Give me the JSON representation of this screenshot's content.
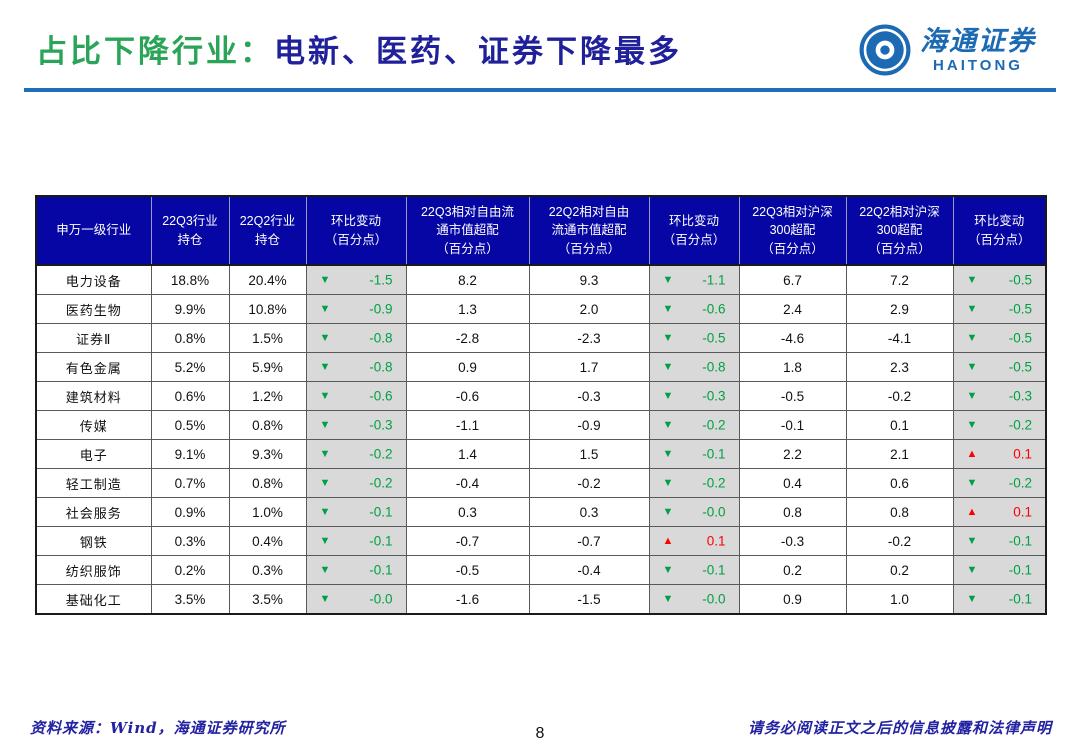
{
  "title": {
    "prefix": "占比下降行业：",
    "main": "电新、医药、证券下降最多"
  },
  "logo": {
    "company_cn": "海通证券",
    "company_en": "HAITONG"
  },
  "icons": {
    "down_triangle": "▼",
    "up_triangle": "▲",
    "logo_mark": "haitong-pinwheel"
  },
  "colors": {
    "title_green": "#2aa457",
    "title_navy": "#20209a",
    "header_bg": "#0606a4",
    "change_col_bg": "#d9d9d9",
    "down_green": "#00a142",
    "up_red": "#ff0000",
    "logo_blue": "#1b6ab3",
    "rule_blue": "#1e6fb8",
    "footer_navy": "#2222a2"
  },
  "table": {
    "headers": [
      "申万一级行业",
      "22Q3行业\n持仓",
      "22Q2行业\n持仓",
      "环比变动\n（百分点）",
      "22Q3相对自由流\n通市值超配\n（百分点）",
      "22Q2相对自由\n流通市值超配\n（百分点）",
      "环比变动\n（百分点）",
      "22Q3相对沪深\n300超配\n（百分点）",
      "22Q2相对沪深\n300超配\n（百分点）",
      "环比变动\n（百分点）"
    ],
    "rows": [
      {
        "industry": "电力设备",
        "q3_hold": "18.8%",
        "q2_hold": "20.4%",
        "chg_hold": {
          "dir": "down",
          "value": "-1.5"
        },
        "q3_ff": "8.2",
        "q2_ff": "9.3",
        "chg_ff": {
          "dir": "down",
          "value": "-1.1"
        },
        "q3_hs300": "6.7",
        "q2_hs300": "7.2",
        "chg_hs300": {
          "dir": "down",
          "value": "-0.5"
        }
      },
      {
        "industry": "医药生物",
        "q3_hold": "9.9%",
        "q2_hold": "10.8%",
        "chg_hold": {
          "dir": "down",
          "value": "-0.9"
        },
        "q3_ff": "1.3",
        "q2_ff": "2.0",
        "chg_ff": {
          "dir": "down",
          "value": "-0.6"
        },
        "q3_hs300": "2.4",
        "q2_hs300": "2.9",
        "chg_hs300": {
          "dir": "down",
          "value": "-0.5"
        }
      },
      {
        "industry": "证券Ⅱ",
        "q3_hold": "0.8%",
        "q2_hold": "1.5%",
        "chg_hold": {
          "dir": "down",
          "value": "-0.8"
        },
        "q3_ff": "-2.8",
        "q2_ff": "-2.3",
        "chg_ff": {
          "dir": "down",
          "value": "-0.5"
        },
        "q3_hs300": "-4.6",
        "q2_hs300": "-4.1",
        "chg_hs300": {
          "dir": "down",
          "value": "-0.5"
        }
      },
      {
        "industry": "有色金属",
        "q3_hold": "5.2%",
        "q2_hold": "5.9%",
        "chg_hold": {
          "dir": "down",
          "value": "-0.8"
        },
        "q3_ff": "0.9",
        "q2_ff": "1.7",
        "chg_ff": {
          "dir": "down",
          "value": "-0.8"
        },
        "q3_hs300": "1.8",
        "q2_hs300": "2.3",
        "chg_hs300": {
          "dir": "down",
          "value": "-0.5"
        }
      },
      {
        "industry": "建筑材料",
        "q3_hold": "0.6%",
        "q2_hold": "1.2%",
        "chg_hold": {
          "dir": "down",
          "value": "-0.6"
        },
        "q3_ff": "-0.6",
        "q2_ff": "-0.3",
        "chg_ff": {
          "dir": "down",
          "value": "-0.3"
        },
        "q3_hs300": "-0.5",
        "q2_hs300": "-0.2",
        "chg_hs300": {
          "dir": "down",
          "value": "-0.3"
        }
      },
      {
        "industry": "传媒",
        "q3_hold": "0.5%",
        "q2_hold": "0.8%",
        "chg_hold": {
          "dir": "down",
          "value": "-0.3"
        },
        "q3_ff": "-1.1",
        "q2_ff": "-0.9",
        "chg_ff": {
          "dir": "down",
          "value": "-0.2"
        },
        "q3_hs300": "-0.1",
        "q2_hs300": "0.1",
        "chg_hs300": {
          "dir": "down",
          "value": "-0.2"
        }
      },
      {
        "industry": "电子",
        "q3_hold": "9.1%",
        "q2_hold": "9.3%",
        "chg_hold": {
          "dir": "down",
          "value": "-0.2"
        },
        "q3_ff": "1.4",
        "q2_ff": "1.5",
        "chg_ff": {
          "dir": "down",
          "value": "-0.1"
        },
        "q3_hs300": "2.2",
        "q2_hs300": "2.1",
        "chg_hs300": {
          "dir": "up",
          "value": "0.1"
        }
      },
      {
        "industry": "轻工制造",
        "q3_hold": "0.7%",
        "q2_hold": "0.8%",
        "chg_hold": {
          "dir": "down",
          "value": "-0.2"
        },
        "q3_ff": "-0.4",
        "q2_ff": "-0.2",
        "chg_ff": {
          "dir": "down",
          "value": "-0.2"
        },
        "q3_hs300": "0.4",
        "q2_hs300": "0.6",
        "chg_hs300": {
          "dir": "down",
          "value": "-0.2"
        }
      },
      {
        "industry": "社会服务",
        "q3_hold": "0.9%",
        "q2_hold": "1.0%",
        "chg_hold": {
          "dir": "down",
          "value": "-0.1"
        },
        "q3_ff": "0.3",
        "q2_ff": "0.3",
        "chg_ff": {
          "dir": "down",
          "value": "-0.0"
        },
        "q3_hs300": "0.8",
        "q2_hs300": "0.8",
        "chg_hs300": {
          "dir": "up",
          "value": "0.1"
        }
      },
      {
        "industry": "钢铁",
        "q3_hold": "0.3%",
        "q2_hold": "0.4%",
        "chg_hold": {
          "dir": "down",
          "value": "-0.1"
        },
        "q3_ff": "-0.7",
        "q2_ff": "-0.7",
        "chg_ff": {
          "dir": "up",
          "value": "0.1"
        },
        "q3_hs300": "-0.3",
        "q2_hs300": "-0.2",
        "chg_hs300": {
          "dir": "down",
          "value": "-0.1"
        }
      },
      {
        "industry": "纺织服饰",
        "q3_hold": "0.2%",
        "q2_hold": "0.3%",
        "chg_hold": {
          "dir": "down",
          "value": "-0.1"
        },
        "q3_ff": "-0.5",
        "q2_ff": "-0.4",
        "chg_ff": {
          "dir": "down",
          "value": "-0.1"
        },
        "q3_hs300": "0.2",
        "q2_hs300": "0.2",
        "chg_hs300": {
          "dir": "down",
          "value": "-0.1"
        }
      },
      {
        "industry": "基础化工",
        "q3_hold": "3.5%",
        "q2_hold": "3.5%",
        "chg_hold": {
          "dir": "down",
          "value": "-0.0"
        },
        "q3_ff": "-1.6",
        "q2_ff": "-1.5",
        "chg_ff": {
          "dir": "down",
          "value": "-0.0"
        },
        "q3_hs300": "0.9",
        "q2_hs300": "1.0",
        "chg_hs300": {
          "dir": "down",
          "value": "-0.1"
        }
      }
    ]
  },
  "footer": {
    "source": "资料来源：Wind，海通证券研究所",
    "page_number": "8",
    "disclaimer": "请务必阅读正文之后的信息披露和法律声明"
  }
}
